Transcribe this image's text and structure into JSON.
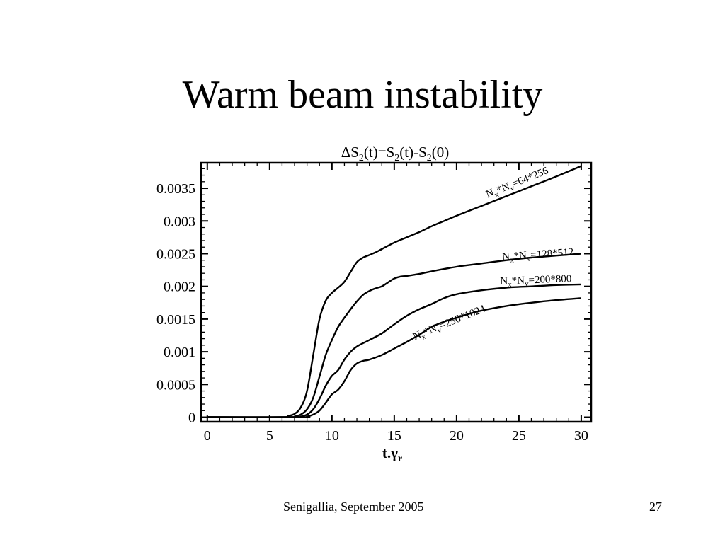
{
  "slide": {
    "title": "Warm beam instability",
    "footer": "Senigallia, September 2005",
    "page_number": "27"
  },
  "chart_data": {
    "type": "line",
    "title": "ΔS₂(t)=S₂(t)-S₂(0)",
    "title_parts": {
      "delta": "ΔS",
      "sub1": "2",
      "p1": "(t)=S",
      "sub2": "2",
      "p2": "(t)-S",
      "sub3": "2",
      "p3": "(0)"
    },
    "xlabel": "t.γ",
    "xlabel_sub": "r",
    "ylabel": "",
    "xlim": [
      -0.5,
      30.8
    ],
    "ylim": [
      -7e-05,
      0.00389
    ],
    "x_ticks": [
      "0",
      "5",
      "10",
      "15",
      "20",
      "25",
      "30"
    ],
    "x_tick_values": [
      0,
      5,
      10,
      15,
      20,
      25,
      30
    ],
    "y_ticks": [
      "0",
      "0.0005",
      "0.001",
      "0.0015",
      "0.002",
      "0.0025",
      "0.003",
      "0.0035"
    ],
    "y_tick_values": [
      0,
      0.0005,
      0.001,
      0.0015,
      0.002,
      0.0025,
      0.003,
      0.0035
    ],
    "grid": false,
    "series": [
      {
        "name": "Nx*Nv=64*256",
        "label_parts": {
          "a": "N",
          "sa": "x",
          "b": "*N",
          "sb": "v",
          "c": "=64*256"
        },
        "x": [
          0,
          6,
          6.5,
          7,
          7.5,
          8,
          8.5,
          9,
          9.5,
          10,
          10.5,
          11,
          11.5,
          12,
          12.5,
          13,
          13.5,
          14,
          15,
          16,
          17,
          18,
          19,
          20,
          22,
          24,
          26,
          28,
          30
        ],
        "y": [
          0,
          0,
          2e-05,
          5e-05,
          0.00015,
          0.0004,
          0.00095,
          0.0015,
          0.00178,
          0.0019,
          0.00198,
          0.00207,
          0.00222,
          0.00237,
          0.00244,
          0.00248,
          0.00252,
          0.00257,
          0.00267,
          0.00275,
          0.00283,
          0.00292,
          0.003,
          0.00308,
          0.00323,
          0.00338,
          0.00353,
          0.00368,
          0.00384
        ]
      },
      {
        "name": "Nx*Nv=128*512",
        "label_parts": {
          "a": "N",
          "sa": "x",
          "b": "*N",
          "sb": "v",
          "c": "=128*512"
        },
        "x": [
          0,
          6.5,
          7,
          7.5,
          8,
          8.5,
          9,
          9.5,
          10,
          10.5,
          11,
          11.5,
          12,
          12.5,
          13,
          13.5,
          14,
          14.5,
          15,
          15.5,
          16,
          17,
          18,
          20,
          22,
          24,
          26,
          28,
          30
        ],
        "y": [
          0,
          0,
          1e-05,
          4e-05,
          0.00012,
          0.0003,
          0.00062,
          0.00095,
          0.00118,
          0.00138,
          0.00152,
          0.00165,
          0.00177,
          0.00187,
          0.00193,
          0.00197,
          0.002,
          0.00206,
          0.00212,
          0.00215,
          0.00216,
          0.00219,
          0.00223,
          0.0023,
          0.00235,
          0.0024,
          0.00244,
          0.00247,
          0.0025
        ]
      },
      {
        "name": "Nx*Nv=200*800",
        "label_parts": {
          "a": "N",
          "sa": "x",
          "b": "*N",
          "sb": "v",
          "c": "=200*800"
        },
        "x": [
          0,
          7,
          7.5,
          8,
          8.5,
          9,
          9.5,
          10,
          10.5,
          11,
          11.5,
          12,
          13,
          14,
          15,
          16,
          17,
          18,
          19,
          20,
          22,
          24,
          26,
          28,
          30
        ],
        "y": [
          0,
          0,
          1e-05,
          4e-05,
          0.00012,
          0.00028,
          0.00048,
          0.00063,
          0.00072,
          0.00088,
          0.001,
          0.00108,
          0.00118,
          0.00128,
          0.00142,
          0.00155,
          0.00165,
          0.00173,
          0.00182,
          0.00188,
          0.00194,
          0.00198,
          0.002,
          0.00202,
          0.00203
        ]
      },
      {
        "name": "Nx*Nv=256*1024",
        "label_parts": {
          "a": "N",
          "sa": "x",
          "b": "*N",
          "sb": "v",
          "c": "=256*1024"
        },
        "x": [
          0,
          7.5,
          8,
          8.5,
          9,
          9.5,
          10,
          10.5,
          11,
          11.5,
          12,
          12.5,
          13,
          14,
          15,
          16,
          17,
          18,
          19,
          20,
          21,
          22,
          24,
          26,
          28,
          30
        ],
        "y": [
          0,
          0,
          1e-05,
          4e-05,
          0.0001,
          0.00022,
          0.00035,
          0.00042,
          0.00055,
          0.00072,
          0.00082,
          0.00086,
          0.00088,
          0.00095,
          0.00105,
          0.00115,
          0.00126,
          0.00138,
          0.00146,
          0.00152,
          0.00158,
          0.00163,
          0.0017,
          0.00175,
          0.00179,
          0.00182
        ]
      }
    ]
  }
}
